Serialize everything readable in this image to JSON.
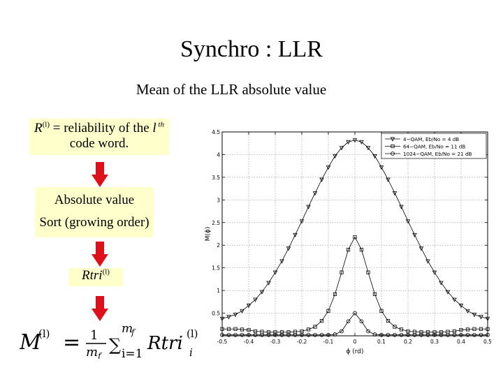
{
  "slide": {
    "title": "Synchro : LLR",
    "subtitle": "Mean of the LLR absolute value"
  },
  "flow": {
    "box1_symbol": "R",
    "box1_sup": "(l)",
    "box1_mid": " = reliability of the ",
    "box1_l": "l",
    "box1_th": " th",
    "box1_line2": "code word.",
    "box2_line1": "Absolute value",
    "box2_line2": "Sort (growing order)",
    "box3_text": "Rtri",
    "box3_sup": "(l)",
    "box_color": "#ffffcc",
    "arrow_color": "#e0101a"
  },
  "formula": {
    "lhs": "M",
    "lhs_sup": "(l)",
    "equals": "=",
    "frac_num": "1",
    "frac_den": "m",
    "frac_den_sub": "f",
    "sum_sub": "i=1",
    "sum_sup": "m",
    "sum_sup_sub": "f",
    "term": "Rtri",
    "term_sup": "(l)",
    "term_sub": "i"
  },
  "chart_data": {
    "type": "line",
    "xlabel": "ϕ (rd)",
    "ylabel": "M(ϕ)",
    "xlim": [
      -0.5,
      0.5
    ],
    "ylim": [
      0,
      4.5
    ],
    "xticks": [
      "-0.5",
      "-0.4",
      "-0.3",
      "-0.2",
      "-0.1",
      "0",
      "0.1",
      "0.2",
      "0.3",
      "0.4",
      "0.5"
    ],
    "yticks": [
      "0.5",
      "1",
      "1.5",
      "2",
      "2.5",
      "3",
      "3.5",
      "4",
      "4.5"
    ],
    "grid": true,
    "legend_position": "top-right",
    "series": [
      {
        "name": "4−QAM, Eb/No = 4 dB",
        "marker": "triangle-down",
        "x": [
          -0.5,
          -0.475,
          -0.45,
          -0.425,
          -0.4,
          -0.375,
          -0.35,
          -0.325,
          -0.3,
          -0.275,
          -0.25,
          -0.225,
          -0.2,
          -0.175,
          -0.15,
          -0.125,
          -0.1,
          -0.075,
          -0.05,
          -0.025,
          0,
          0.025,
          0.05,
          0.075,
          0.1,
          0.125,
          0.15,
          0.175,
          0.2,
          0.225,
          0.25,
          0.275,
          0.3,
          0.325,
          0.35,
          0.375,
          0.4,
          0.425,
          0.45,
          0.475,
          0.5
        ],
        "y": [
          0.38,
          0.42,
          0.47,
          0.55,
          0.67,
          0.8,
          0.97,
          1.17,
          1.4,
          1.65,
          1.93,
          2.23,
          2.53,
          2.85,
          3.15,
          3.45,
          3.72,
          3.97,
          4.15,
          4.28,
          4.32,
          4.28,
          4.15,
          3.97,
          3.72,
          3.45,
          3.15,
          2.85,
          2.53,
          2.23,
          1.93,
          1.65,
          1.4,
          1.17,
          0.97,
          0.8,
          0.67,
          0.55,
          0.47,
          0.42,
          0.38
        ]
      },
      {
        "name": "64−QAM, Eb/No = 11 dB",
        "marker": "square",
        "x": [
          -0.5,
          -0.475,
          -0.45,
          -0.425,
          -0.4,
          -0.375,
          -0.35,
          -0.325,
          -0.3,
          -0.275,
          -0.25,
          -0.225,
          -0.2,
          -0.175,
          -0.15,
          -0.125,
          -0.1,
          -0.075,
          -0.05,
          -0.025,
          0,
          0.025,
          0.05,
          0.075,
          0.1,
          0.125,
          0.15,
          0.175,
          0.2,
          0.225,
          0.25,
          0.275,
          0.3,
          0.325,
          0.35,
          0.375,
          0.4,
          0.425,
          0.45,
          0.475,
          0.5
        ],
        "y": [
          0.15,
          0.15,
          0.15,
          0.14,
          0.13,
          0.1,
          0.09,
          0.08,
          0.08,
          0.08,
          0.08,
          0.09,
          0.1,
          0.14,
          0.2,
          0.33,
          0.55,
          0.92,
          1.4,
          1.9,
          2.18,
          1.9,
          1.4,
          0.92,
          0.55,
          0.33,
          0.2,
          0.14,
          0.1,
          0.09,
          0.08,
          0.08,
          0.08,
          0.08,
          0.09,
          0.1,
          0.13,
          0.14,
          0.15,
          0.15,
          0.15
        ]
      },
      {
        "name": "1024−QAM, Eb/No = 21 dB",
        "marker": "circle",
        "x": [
          -0.5,
          -0.475,
          -0.45,
          -0.425,
          -0.4,
          -0.375,
          -0.35,
          -0.325,
          -0.3,
          -0.275,
          -0.25,
          -0.225,
          -0.2,
          -0.175,
          -0.15,
          -0.125,
          -0.1,
          -0.075,
          -0.05,
          -0.025,
          0,
          0.025,
          0.05,
          0.075,
          0.1,
          0.125,
          0.15,
          0.175,
          0.2,
          0.225,
          0.25,
          0.275,
          0.3,
          0.325,
          0.35,
          0.375,
          0.4,
          0.425,
          0.45,
          0.475,
          0.5
        ],
        "y": [
          0.02,
          0.02,
          0.02,
          0.02,
          0.02,
          0.02,
          0.02,
          0.02,
          0.02,
          0.02,
          0.02,
          0.02,
          0.02,
          0.02,
          0.02,
          0.02,
          0.02,
          0.03,
          0.1,
          0.32,
          0.5,
          0.32,
          0.1,
          0.03,
          0.02,
          0.02,
          0.02,
          0.02,
          0.02,
          0.02,
          0.02,
          0.02,
          0.02,
          0.02,
          0.02,
          0.02,
          0.02,
          0.02,
          0.02,
          0.02,
          0.02
        ]
      }
    ]
  }
}
